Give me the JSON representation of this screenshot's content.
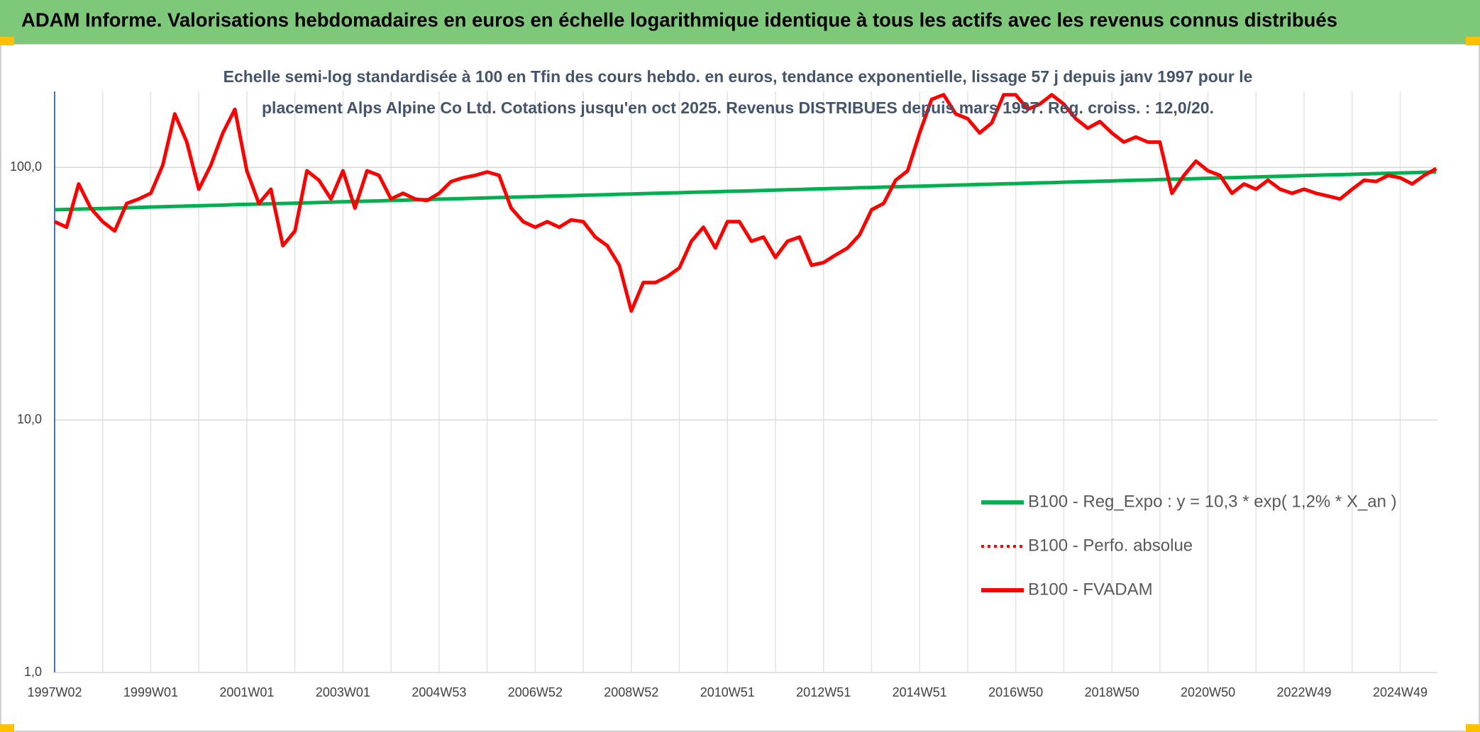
{
  "chart_data": {
    "type": "line",
    "title": "ADAM Informe. Valorisations hebdomadaires en euros en échelle logarithmique identique à tous les actifs avec les revenus connus distribués",
    "subtitle": "Echelle semi-log standardisée à 100 en Tfin des cours hebdo. en euros, tendance exponentielle, lissage 57 j depuis janv 1997 pour le placement Alps Alpine Co Ltd. Cotations jusqu'en oct 2025. Revenus DISTRIBUES depuis mars 1997. Reg. croiss. : 12,0/20.",
    "categories": [
      "1997W02",
      null,
      null,
      null,
      null,
      null,
      null,
      null,
      "1999W01",
      null,
      null,
      null,
      null,
      null,
      null,
      null,
      "2001W01",
      null,
      null,
      null,
      null,
      null,
      null,
      null,
      "2003W01",
      null,
      null,
      null,
      null,
      null,
      null,
      null,
      "2004W53",
      null,
      null,
      null,
      null,
      null,
      null,
      null,
      "2006W52",
      null,
      null,
      null,
      null,
      null,
      null,
      null,
      "2008W52",
      null,
      null,
      null,
      null,
      null,
      null,
      null,
      "2010W51",
      null,
      null,
      null,
      null,
      null,
      null,
      null,
      "2012W51",
      null,
      null,
      null,
      null,
      null,
      null,
      null,
      "2014W51",
      null,
      null,
      null,
      null,
      null,
      null,
      null,
      "2016W50",
      null,
      null,
      null,
      null,
      null,
      null,
      null,
      "2018W50",
      null,
      null,
      null,
      null,
      null,
      null,
      null,
      "2020W50",
      null,
      null,
      null,
      null,
      null,
      null,
      null,
      "2022W49",
      null,
      null,
      null,
      null,
      null,
      null,
      null,
      "2024W49",
      null,
      null,
      null
    ],
    "series": [
      {
        "name": "B100 - Reg_Expo : y = 10,3 * exp( 1,2% *  X_an )",
        "color": "#00b050",
        "style": "solid",
        "values": [
          68.0,
          68.2,
          68.4,
          68.6,
          68.8,
          69.0,
          69.2,
          69.4,
          69.7,
          69.9,
          70.1,
          70.3,
          70.5,
          70.7,
          70.9,
          71.2,
          71.4,
          71.6,
          71.8,
          72.0,
          72.2,
          72.4,
          72.6,
          72.9,
          73.1,
          73.3,
          73.5,
          73.7,
          74.0,
          74.2,
          74.4,
          74.6,
          74.9,
          75.1,
          75.3,
          75.5,
          75.8,
          76.0,
          76.2,
          76.4,
          76.6,
          76.9,
          77.1,
          77.3,
          77.6,
          77.8,
          78.0,
          78.3,
          78.5,
          78.7,
          79.0,
          79.2,
          79.4,
          79.7,
          79.9,
          80.1,
          80.4,
          80.6,
          80.8,
          81.1,
          81.3,
          81.6,
          81.8,
          82.1,
          82.3,
          82.6,
          82.8,
          83.1,
          83.3,
          83.6,
          83.8,
          84.1,
          84.3,
          84.6,
          84.8,
          85.1,
          85.3,
          85.6,
          85.8,
          86.1,
          86.3,
          86.6,
          86.9,
          87.1,
          87.4,
          87.7,
          87.9,
          88.2,
          88.4,
          88.7,
          89.0,
          89.2,
          89.5,
          89.8,
          90.0,
          90.3,
          90.6,
          90.9,
          91.1,
          91.4,
          91.7,
          92.0,
          92.2,
          92.5,
          92.8,
          93.1,
          93.4,
          93.6,
          93.9,
          94.2,
          94.5,
          94.8,
          95.1,
          95.4,
          95.7,
          95.9
        ]
      },
      {
        "name": "B100 - Perfo. absolue",
        "color": "#ff0000",
        "style": "dotted",
        "values": [
          61,
          58,
          86,
          69,
          61,
          56,
          72,
          75,
          79,
          102,
          163,
          126,
          82,
          102,
          137,
          170,
          97,
          72,
          82,
          49,
          56,
          97,
          89,
          75,
          97,
          69,
          97,
          93,
          75,
          79,
          75,
          74,
          79,
          88,
          91,
          93,
          96,
          93,
          69,
          61,
          58,
          61,
          58,
          62,
          61,
          53,
          49,
          41,
          27,
          35,
          35,
          37,
          40,
          51,
          58,
          48,
          61,
          61,
          51,
          53,
          44,
          51,
          53,
          41,
          42,
          45,
          48,
          54,
          68,
          72,
          89,
          97,
          137,
          186,
          194,
          163,
          156,
          137,
          150,
          194,
          194,
          170,
          178,
          194,
          178,
          156,
          143,
          152,
          137,
          126,
          132,
          126,
          126,
          79,
          93,
          106,
          97,
          93,
          79,
          86,
          82,
          89,
          82,
          79,
          82,
          79,
          77,
          75,
          82,
          89,
          88,
          93,
          91,
          86,
          93,
          99
        ]
      },
      {
        "name": "B100 - FVADAM",
        "color": "#ff0000",
        "style": "solid",
        "values": [
          61,
          58,
          86,
          69,
          61,
          56,
          72,
          75,
          79,
          102,
          163,
          126,
          82,
          102,
          137,
          170,
          97,
          72,
          82,
          49,
          56,
          97,
          89,
          75,
          97,
          69,
          97,
          93,
          75,
          79,
          75,
          74,
          79,
          88,
          91,
          93,
          96,
          93,
          69,
          61,
          58,
          61,
          58,
          62,
          61,
          53,
          49,
          41,
          27,
          35,
          35,
          37,
          40,
          51,
          58,
          48,
          61,
          61,
          51,
          53,
          44,
          51,
          53,
          41,
          42,
          45,
          48,
          54,
          68,
          72,
          89,
          97,
          137,
          186,
          194,
          163,
          156,
          137,
          150,
          194,
          194,
          170,
          178,
          194,
          178,
          156,
          143,
          152,
          137,
          126,
          132,
          126,
          126,
          79,
          93,
          106,
          97,
          93,
          79,
          86,
          82,
          89,
          82,
          79,
          82,
          79,
          77,
          75,
          82,
          89,
          88,
          93,
          91,
          86,
          93,
          99
        ]
      }
    ],
    "ylim": [
      1,
      200
    ],
    "yticks": [
      {
        "value": 1,
        "label": "1,0"
      },
      {
        "value": 10,
        "label": "10,0"
      },
      {
        "value": 100,
        "label": "100,0"
      }
    ],
    "log_scale": true,
    "grid": true,
    "legend": "right"
  }
}
